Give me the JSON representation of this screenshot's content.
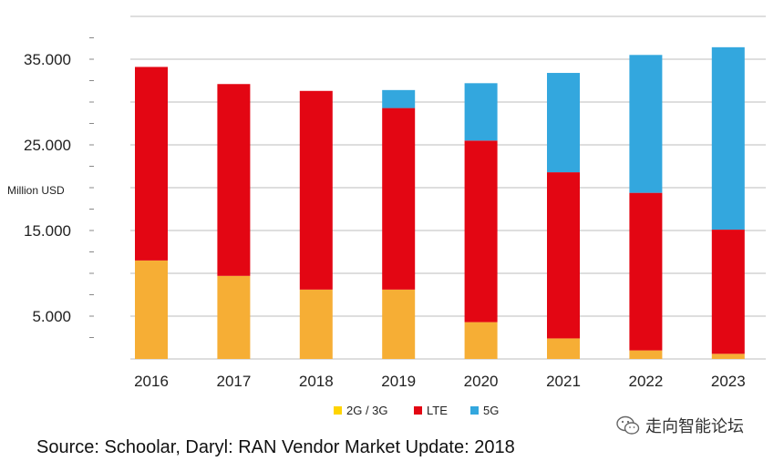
{
  "chart_data": {
    "type": "bar",
    "stacked": true,
    "categories": [
      "2016",
      "2017",
      "2018",
      "2019",
      "2020",
      "2021",
      "2022",
      "2023"
    ],
    "series": [
      {
        "name": "2G / 3G",
        "color": "#F6AE35",
        "values": [
          11500,
          9700,
          8100,
          8100,
          4300,
          2400,
          1000,
          600
        ]
      },
      {
        "name": "LTE",
        "color": "#E30613",
        "values": [
          22600,
          22400,
          23200,
          21200,
          21200,
          19400,
          18400,
          14500
        ]
      },
      {
        "name": "5G",
        "color": "#33A7DE",
        "values": [
          0,
          0,
          0,
          2100,
          6700,
          11600,
          16100,
          21300
        ]
      }
    ],
    "legend_swatch_colors": [
      "#FFD400",
      "#E30613",
      "#33A7DE"
    ],
    "ylabel": "Million USD",
    "ylim": [
      0,
      40000
    ],
    "yticks": [
      "5.000",
      "15.000",
      "25.000",
      "35.000"
    ],
    "ytick_values": [
      5000,
      15000,
      25000,
      35000
    ],
    "grid": true,
    "legend_position": "bottom"
  },
  "source_text": "Source: Schoolar, Daryl: RAN Vendor Market Update: 2018",
  "watermark": {
    "text": "走向智能论坛",
    "icon": "wechat-icon"
  }
}
